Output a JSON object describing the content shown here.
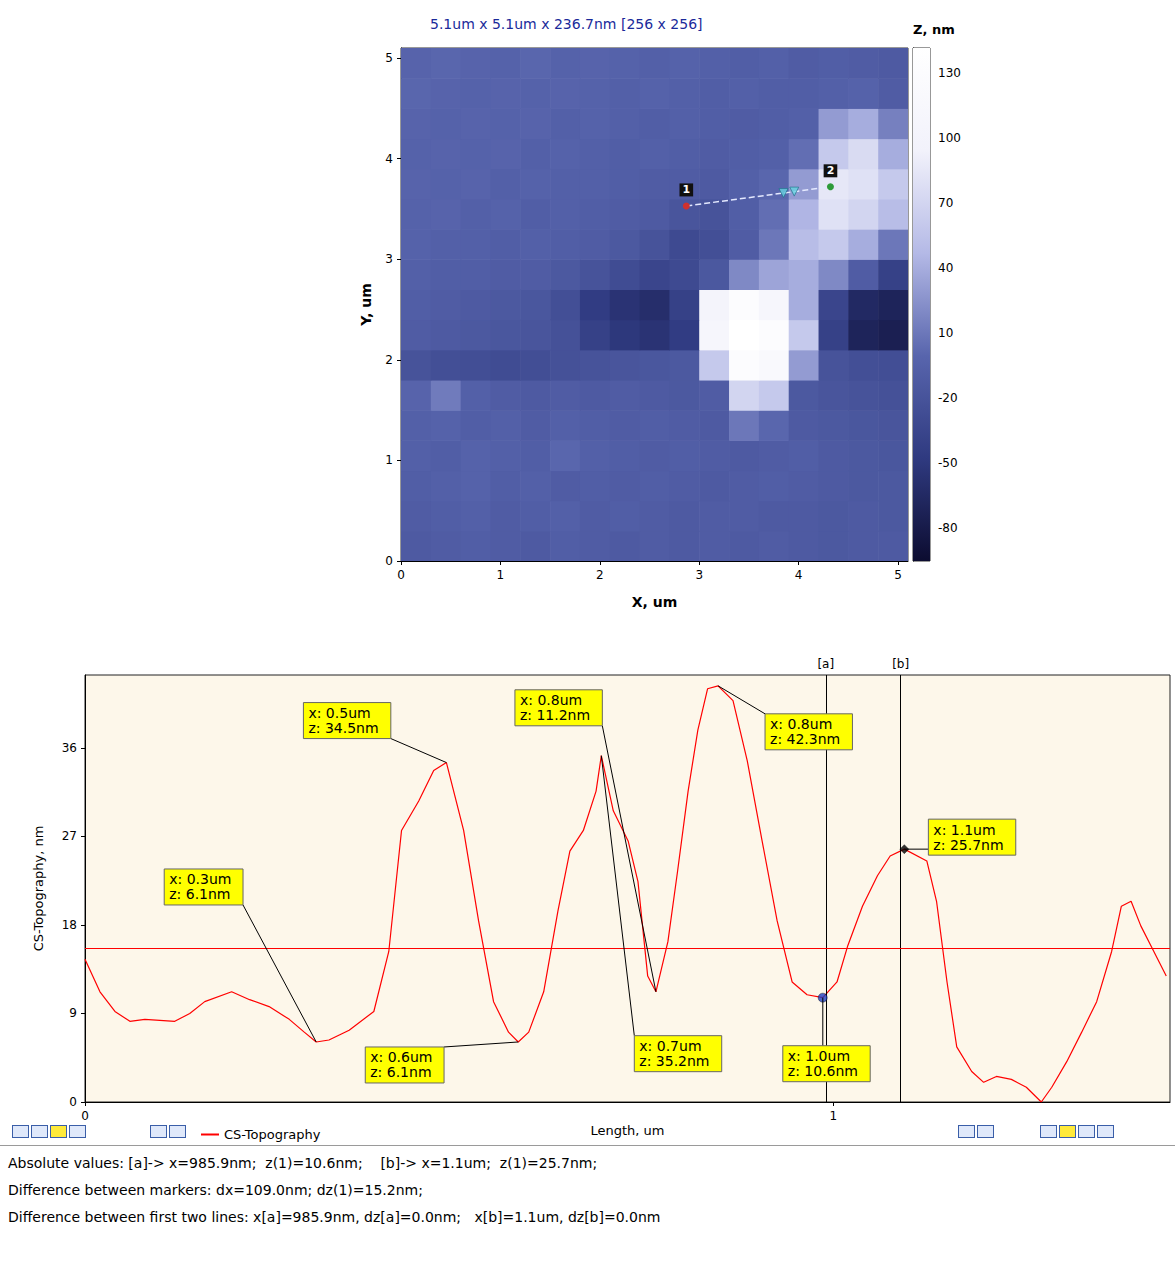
{
  "chart_data": [
    {
      "type": "heatmap",
      "title": "5.1um x 5.1um x 236.7nm [256 x 256]",
      "x_label": "X, um",
      "y_label": "Y, um",
      "xlim": [
        0,
        5.1
      ],
      "ylim": [
        0,
        5.1
      ],
      "xticks": [
        0,
        1,
        2,
        3,
        4,
        5
      ],
      "yticks": [
        0,
        1,
        2,
        3,
        4,
        5
      ],
      "grid": false,
      "x": [
        0.15,
        0.45,
        0.75,
        1.05,
        1.35,
        1.65,
        1.95,
        2.25,
        2.55,
        2.85,
        3.15,
        3.45,
        3.75,
        4.05,
        4.35,
        4.65,
        4.95
      ],
      "y": [
        0.15,
        0.45,
        0.75,
        1.05,
        1.35,
        1.65,
        1.95,
        2.25,
        2.55,
        2.85,
        3.15,
        3.45,
        3.75,
        4.05,
        4.35,
        4.65,
        4.95
      ],
      "z": [
        [
          -12,
          -10,
          -8,
          -10,
          -12,
          -8,
          -10,
          -12,
          -10,
          -12,
          -10,
          -12,
          -10,
          -12,
          -14,
          -12,
          -12
        ],
        [
          -10,
          -8,
          -6,
          -10,
          -8,
          -6,
          -10,
          -8,
          -10,
          -12,
          -10,
          -10,
          -12,
          -12,
          -14,
          -12,
          -14
        ],
        [
          -8,
          -6,
          -4,
          -8,
          -6,
          -10,
          -8,
          -10,
          -8,
          -10,
          -12,
          -10,
          -8,
          -10,
          -12,
          -14,
          -14
        ],
        [
          -6,
          -8,
          -4,
          -6,
          -8,
          0,
          -6,
          -8,
          -10,
          -8,
          -10,
          -12,
          -10,
          -8,
          -12,
          -14,
          -16
        ],
        [
          -6,
          -4,
          -8,
          -6,
          -10,
          -6,
          -8,
          -10,
          -8,
          -10,
          -12,
          10,
          0,
          -12,
          -14,
          -16,
          -18
        ],
        [
          -2,
          12,
          -6,
          -10,
          -12,
          -10,
          -12,
          -10,
          -12,
          -14,
          -10,
          70,
          60,
          -14,
          -18,
          -20,
          -22
        ],
        [
          -20,
          -24,
          -26,
          -28,
          -26,
          -22,
          -20,
          -18,
          -16,
          -14,
          60,
          130,
          120,
          30,
          -20,
          -24,
          -26
        ],
        [
          -10,
          -12,
          -14,
          -16,
          -18,
          -22,
          -40,
          -50,
          -55,
          -45,
          110,
          140,
          130,
          60,
          -40,
          -70,
          -75
        ],
        [
          -8,
          -10,
          -12,
          -14,
          -16,
          -24,
          -45,
          -55,
          -60,
          -40,
          100,
          130,
          110,
          40,
          -35,
          -65,
          -70
        ],
        [
          -6,
          -8,
          -8,
          -10,
          -10,
          -14,
          -20,
          -28,
          -35,
          -30,
          -15,
          20,
          35,
          40,
          20,
          -10,
          -40
        ],
        [
          -4,
          -6,
          -6,
          -8,
          -6,
          -8,
          -10,
          -14,
          -20,
          -30,
          -25,
          -10,
          10,
          50,
          60,
          40,
          10
        ],
        [
          -4,
          -2,
          -6,
          -4,
          -8,
          -6,
          -8,
          -10,
          -12,
          -18,
          -20,
          -8,
          5,
          45,
          80,
          70,
          50
        ],
        [
          -2,
          -4,
          -2,
          -6,
          -4,
          -6,
          -6,
          -8,
          -10,
          -10,
          -12,
          -6,
          0,
          30,
          85,
          80,
          60
        ],
        [
          -4,
          -2,
          -4,
          -2,
          -6,
          -4,
          -6,
          -8,
          -6,
          -8,
          -10,
          -8,
          -6,
          5,
          60,
          75,
          40
        ],
        [
          -2,
          -4,
          -2,
          -4,
          -2,
          -6,
          -4,
          -6,
          -8,
          -6,
          -8,
          -10,
          -8,
          -6,
          30,
          40,
          15
        ],
        [
          0,
          -2,
          -4,
          -2,
          -4,
          -2,
          -4,
          -6,
          -4,
          -6,
          -8,
          -6,
          -8,
          -8,
          -6,
          -4,
          -10
        ],
        [
          -2,
          0,
          -2,
          -4,
          0,
          -4,
          -2,
          -4,
          -6,
          -4,
          -6,
          -8,
          -6,
          -10,
          -8,
          -10,
          -12
        ]
      ],
      "colorbar": {
        "title": "Z, nm",
        "zlim": [
          -95,
          141.7
        ],
        "zticks": [
          -80,
          -50,
          -20,
          10,
          40,
          70,
          100,
          130
        ]
      },
      "profile": {
        "x": [
          2.87,
          4.32
        ],
        "y": [
          3.53,
          3.72
        ],
        "labels": [
          "1",
          "2"
        ],
        "colors": [
          "#d0312d",
          "#2e9b3a"
        ],
        "marker": "circle",
        "line_style": "dashed"
      }
    },
    {
      "type": "line",
      "x_label": "Length, um",
      "y_label": "CS-Topography, nm",
      "xlim": [
        0,
        1.45
      ],
      "ylim": [
        0,
        43.4
      ],
      "xticks": [
        0,
        1
      ],
      "yticks": [
        0,
        9,
        18,
        27,
        36
      ],
      "grid": false,
      "legend": "bottom",
      "series": [
        {
          "name": "CS-Topography",
          "color": "#ff0000",
          "x": [
            0,
            0.02,
            0.04,
            0.06,
            0.08,
            0.12,
            0.14,
            0.16,
            0.196,
            0.22,
            0.246,
            0.273,
            0.293,
            0.309,
            0.326,
            0.353,
            0.386,
            0.406,
            0.423,
            0.446,
            0.466,
            0.483,
            0.506,
            0.526,
            0.546,
            0.566,
            0.579,
            0.593,
            0.613,
            0.632,
            0.648,
            0.666,
            0.683,
            0.69,
            0.706,
            0.726,
            0.739,
            0.752,
            0.763,
            0.779,
            0.792,
            0.806,
            0.819,
            0.832,
            0.846,
            0.866,
            0.885,
            0.905,
            0.925,
            0.945,
            0.965,
            0.986,
            1.005,
            1.019,
            1.039,
            1.059,
            1.076,
            1.095,
            1.125,
            1.138,
            1.152,
            1.165,
            1.185,
            1.201,
            1.218,
            1.238,
            1.258,
            1.278,
            1.292,
            1.312,
            1.332,
            1.352,
            1.372,
            1.385,
            1.398,
            1.411,
            1.425,
            1.445
          ],
          "values": [
            14.5,
            11.2,
            9.2,
            8.2,
            8.4,
            8.2,
            9.0,
            10.2,
            11.2,
            10.4,
            9.7,
            8.4,
            7.1,
            6.1,
            6.3,
            7.3,
            9.2,
            15.3,
            27.6,
            30.6,
            33.7,
            34.5,
            27.6,
            18.4,
            10.2,
            7.1,
            6.1,
            7.1,
            11.2,
            19.4,
            25.5,
            27.6,
            31.6,
            35.2,
            29.6,
            26.5,
            22.4,
            12.8,
            11.2,
            16.3,
            23.5,
            31.6,
            37.8,
            42.0,
            42.3,
            40.8,
            34.7,
            26.5,
            18.4,
            12.2,
            10.9,
            10.6,
            12.2,
            15.8,
            19.9,
            23.0,
            25.0,
            25.7,
            24.5,
            20.4,
            12.2,
            5.6,
            3.1,
            2.0,
            2.6,
            2.3,
            1.5,
            0.0,
            1.5,
            4.1,
            7.1,
            10.2,
            15.3,
            19.9,
            20.4,
            17.9,
            15.8,
            12.8
          ]
        }
      ],
      "mean_line": 15.6,
      "markers": [
        {
          "label": "[a]",
          "x": 0.9859,
          "z": 10.6,
          "color": "#1f3fbf",
          "marker": "circle"
        },
        {
          "label": "[b]",
          "x": 1.0949,
          "z": 25.7,
          "color": "#000000",
          "marker": "diamond"
        }
      ],
      "annotations": [
        {
          "text": [
            "x: 0.3um",
            "z: 6.1nm"
          ],
          "x": 0.309,
          "z": 6.1
        },
        {
          "text": [
            "x: 0.5um",
            "z: 34.5nm"
          ],
          "x": 0.483,
          "z": 34.5
        },
        {
          "text": [
            "x: 0.6um",
            "z: 6.1nm"
          ],
          "x": 0.579,
          "z": 6.1
        },
        {
          "text": [
            "x: 0.8um",
            "z: 11.2nm"
          ],
          "x": 0.763,
          "z": 11.2
        },
        {
          "text": [
            "x: 0.7um",
            "z: 35.2nm"
          ],
          "x": 0.69,
          "z": 35.2
        },
        {
          "text": [
            "x: 0.8um",
            "z: 42.3nm"
          ],
          "x": 0.846,
          "z": 42.3
        },
        {
          "text": [
            "x: 1.0um",
            "z: 10.6nm"
          ],
          "x": 0.986,
          "z": 10.6
        },
        {
          "text": [
            "x: 1.1um",
            "z: 25.7nm"
          ],
          "x": 1.095,
          "z": 25.7
        }
      ]
    }
  ],
  "status_bar": {
    "lines": [
      "Absolute values: [a]-> x=985.9nm;  z(1)=10.6nm;    [b]-> x=1.1um;  z(1)=25.7nm;",
      "Difference between markers: dx=109.0nm; dz(1)=15.2nm;",
      "Difference between first two lines: x[a]=985.9nm, dz[a]=0.0nm;   x[b]=1.1um, dz[b]=0.0nm"
    ]
  }
}
